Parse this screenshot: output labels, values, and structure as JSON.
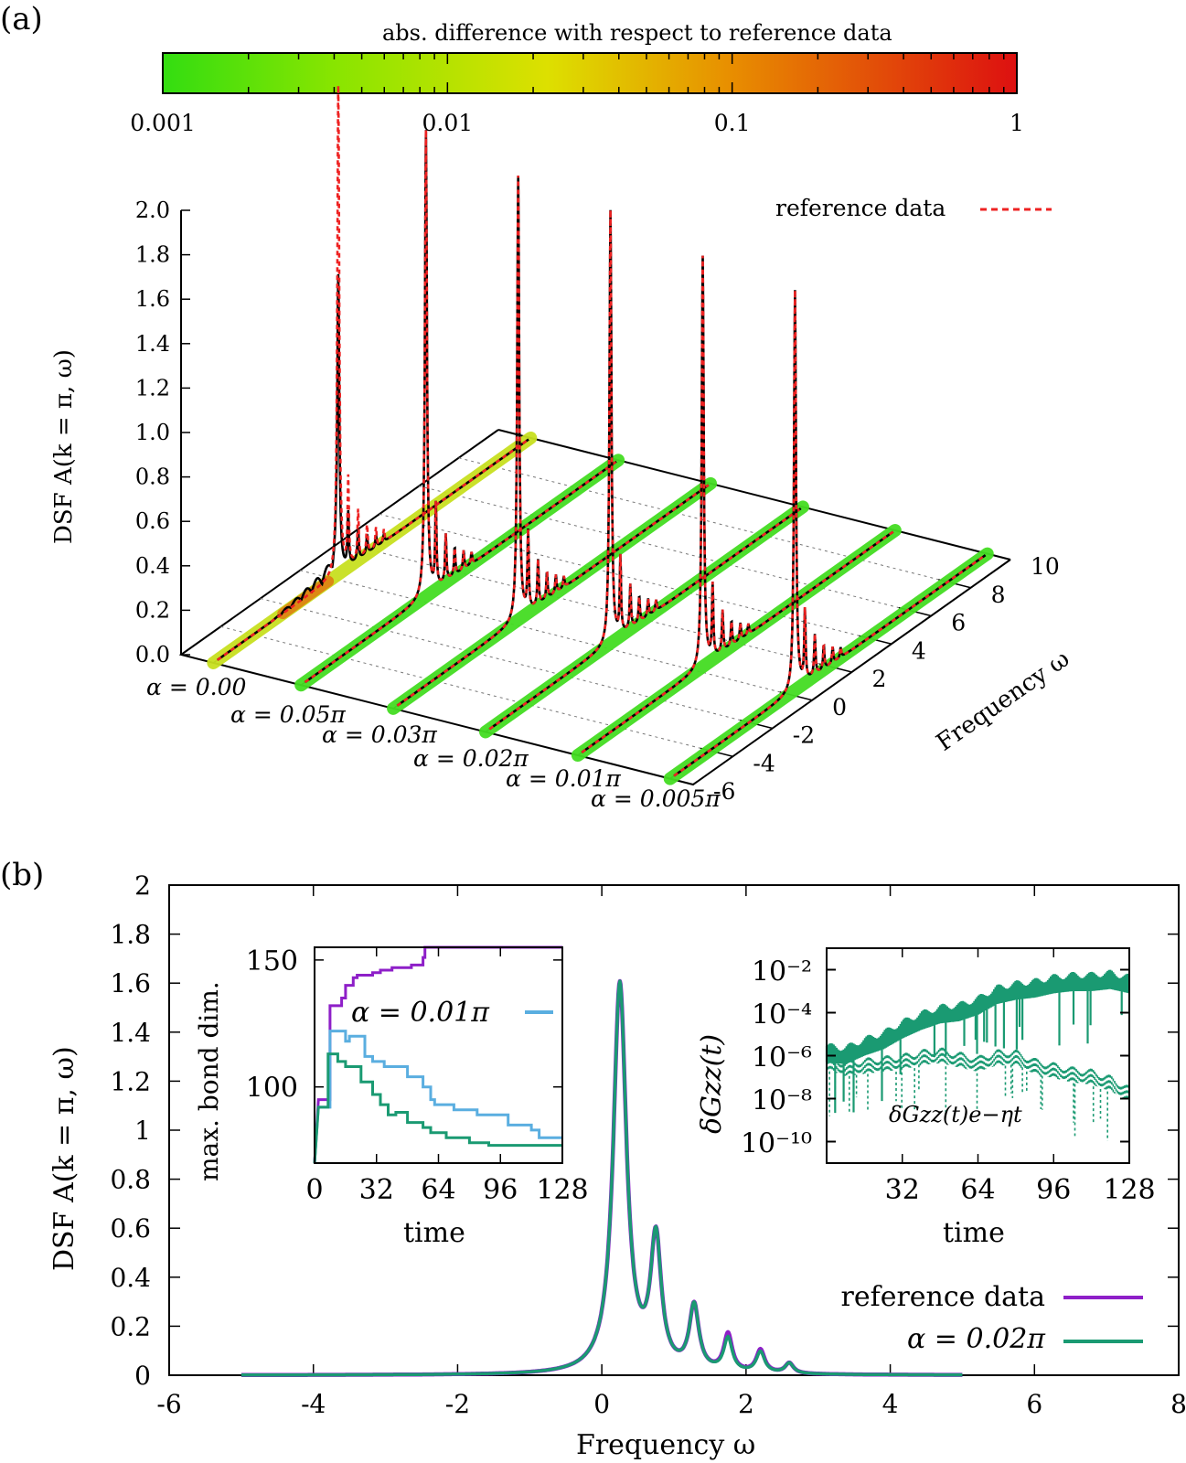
{
  "chart_data": [
    {
      "panel": "(a)",
      "type": "line",
      "title": "",
      "colorbar": {
        "label": "abs. difference with respect to reference data",
        "scale": "log",
        "range": [
          0.001,
          1
        ],
        "tick_labels": [
          "0.001",
          "0.01",
          "0.1",
          "1"
        ],
        "tick_values": [
          0.001,
          0.01,
          0.1,
          1
        ],
        "colors": [
          "#33dd11",
          "#dddd00",
          "#e88800",
          "#dd1111"
        ]
      },
      "zlabel": "DSF A(k = π, ω)",
      "zlim": [
        0,
        2.0
      ],
      "z_tick_labels": [
        "0.0",
        "0.2",
        "0.4",
        "0.6",
        "0.8",
        "1.0",
        "1.2",
        "1.4",
        "1.6",
        "1.8",
        "2.0"
      ],
      "ylabel": "Frequency ω",
      "ylim": [
        -6,
        10
      ],
      "y_tick_labels": [
        "-6",
        "-4",
        "-2",
        "0",
        "2",
        "4",
        "6",
        "8",
        "10"
      ],
      "x_category_labels": [
        "α = 0.00",
        "α = 0.05π",
        "α = 0.03π",
        "α = 0.02π",
        "α = 0.01π",
        "α = 0.005π"
      ],
      "legend": {
        "label": "reference data",
        "style": "dashed",
        "color": "#ee2222",
        "position": "top-right"
      },
      "series": [
        {
          "name": "α = 0.00",
          "peak_omega": 0.3,
          "peak_height": 1.35,
          "reference_peak_height": 2.2,
          "error_level": "high"
        },
        {
          "name": "α = 0.05π",
          "peak_omega": 0.3,
          "peak_height": 2.1,
          "reference_peak_height": 2.1,
          "error_level": "low"
        },
        {
          "name": "α = 0.03π",
          "peak_omega": 0.3,
          "peak_height": 2.0,
          "reference_peak_height": 2.0,
          "error_level": "low"
        },
        {
          "name": "α = 0.02π",
          "peak_omega": 0.3,
          "peak_height": 1.95,
          "reference_peak_height": 1.95,
          "error_level": "low"
        },
        {
          "name": "α = 0.01π",
          "peak_omega": 0.3,
          "peak_height": 1.85,
          "reference_peak_height": 1.85,
          "error_level": "low"
        },
        {
          "name": "α = 0.005π",
          "peak_omega": 0.3,
          "peak_height": 1.8,
          "reference_peak_height": 1.8,
          "error_level": "low"
        }
      ]
    },
    {
      "panel": "(b)",
      "type": "line",
      "xlabel": "Frequency ω",
      "ylabel": "DSF A(k = π, ω)",
      "xlim": [
        -6,
        8
      ],
      "ylim": [
        0,
        2
      ],
      "x_tick_labels": [
        "-6",
        "-4",
        "-2",
        "0",
        "2",
        "4",
        "6",
        "8"
      ],
      "y_tick_labels": [
        "0",
        "0.2",
        "0.4",
        "0.6",
        "0.8",
        "1",
        "1.2",
        "1.4",
        "1.6",
        "1.8",
        "2"
      ],
      "legend": {
        "position": "bottom-right",
        "entries": [
          {
            "label": "reference data",
            "color": "#8e1fc8"
          },
          {
            "label": "α = 0.02π",
            "color": "#1a9a72"
          }
        ]
      },
      "peaks": [
        {
          "omega": 0.25,
          "value": 1.87
        },
        {
          "omega": 0.75,
          "value": 0.62
        },
        {
          "omega": 1.28,
          "value": 0.31
        },
        {
          "omega": 1.75,
          "value": 0.16,
          "reference_value": 0.18
        },
        {
          "omega": 2.2,
          "value": 0.1,
          "reference_value": 0.11
        },
        {
          "omega": 2.6,
          "value": 0.05
        }
      ],
      "series": [
        {
          "name": "reference data",
          "color": "#8e1fc8",
          "x": [
            -5,
            -4,
            -3,
            -2,
            -1,
            -0.5,
            -0.2,
            0,
            0.1,
            0.2,
            0.25,
            0.3,
            0.4,
            0.55,
            0.7,
            0.75,
            0.8,
            1.0,
            1.2,
            1.28,
            1.35,
            1.55,
            1.75,
            1.9,
            2.05,
            2.2,
            2.35,
            2.5,
            2.6,
            2.75,
            3.0,
            3.5,
            4,
            5
          ],
          "y": [
            0.0,
            0.005,
            0.01,
            0.02,
            0.05,
            0.11,
            0.28,
            0.7,
            1.2,
            1.75,
            1.87,
            1.7,
            0.9,
            0.27,
            0.5,
            0.62,
            0.52,
            0.18,
            0.26,
            0.31,
            0.26,
            0.08,
            0.18,
            0.06,
            0.05,
            0.11,
            0.04,
            0.03,
            0.05,
            0.02,
            0.01,
            0.003,
            0.0,
            0.0
          ]
        },
        {
          "name": "α = 0.02π",
          "color": "#1a9a72",
          "x": [
            -5,
            -4,
            -3,
            -2,
            -1,
            -0.5,
            -0.2,
            0,
            0.1,
            0.2,
            0.25,
            0.3,
            0.4,
            0.55,
            0.7,
            0.75,
            0.8,
            1.0,
            1.2,
            1.28,
            1.35,
            1.55,
            1.75,
            1.9,
            2.05,
            2.2,
            2.35,
            2.5,
            2.6,
            2.75,
            3.0,
            3.5,
            4,
            5
          ],
          "y": [
            0.0,
            0.005,
            0.01,
            0.02,
            0.05,
            0.11,
            0.28,
            0.7,
            1.2,
            1.75,
            1.87,
            1.7,
            0.9,
            0.27,
            0.5,
            0.62,
            0.52,
            0.18,
            0.26,
            0.31,
            0.26,
            0.08,
            0.16,
            0.07,
            0.06,
            0.1,
            0.045,
            0.03,
            0.05,
            0.02,
            0.01,
            0.003,
            0.0,
            0.0
          ]
        }
      ]
    },
    {
      "panel": "(b) inset left",
      "type": "line",
      "xlabel": "time",
      "ylabel": "max. bond dim.",
      "xlim": [
        0,
        128
      ],
      "ylim": [
        70,
        155
      ],
      "x_tick_labels": [
        "0",
        "32",
        "64",
        "96",
        "128"
      ],
      "y_tick_labels": [
        "100",
        "150"
      ],
      "legend": {
        "position": "top-right",
        "entries": [
          {
            "label": "α = 0.01π",
            "color": "#5aaee0"
          }
        ]
      },
      "series": [
        {
          "name": "purple",
          "color": "#8e1fc8",
          "x": [
            0,
            2,
            8,
            10,
            14,
            16,
            20,
            22,
            30,
            34,
            40,
            44,
            50,
            54,
            56,
            57,
            128
          ],
          "y": [
            70,
            95,
            132,
            132,
            135,
            140,
            143,
            144,
            145,
            146,
            147,
            147,
            148,
            148,
            151,
            155,
            155
          ]
        },
        {
          "name": "α = 0.01π",
          "color": "#5aaee0",
          "x": [
            0,
            2,
            8,
            12,
            16,
            18,
            22,
            26,
            30,
            36,
            48,
            56,
            60,
            62,
            72,
            84,
            100,
            112,
            116,
            128
          ],
          "y": [
            70,
            92,
            122,
            122,
            118,
            120,
            120,
            112,
            110,
            108,
            104,
            100,
            95,
            93,
            91,
            89,
            85,
            83,
            80,
            80
          ]
        },
        {
          "name": "α = 0.02π",
          "color": "#1a9a72",
          "x": [
            0,
            2,
            7,
            10,
            12,
            16,
            22,
            24,
            30,
            34,
            38,
            42,
            48,
            56,
            60,
            68,
            72,
            80,
            90,
            100,
            110,
            128
          ],
          "y": [
            70,
            92,
            113,
            113,
            110,
            108,
            108,
            102,
            97,
            93,
            89,
            90,
            86,
            84,
            82,
            80,
            80,
            78,
            77,
            77,
            77,
            77
          ]
        }
      ]
    },
    {
      "panel": "(b) inset right",
      "type": "line",
      "xlabel": "time",
      "ylabel": "δG_zz(t)",
      "yscale": "log",
      "xlim": [
        0,
        128
      ],
      "ylim": [
        1e-11,
        0.1
      ],
      "x_tick_labels": [
        "32",
        "64",
        "96",
        "128"
      ],
      "y_tick_labels": [
        "10⁻²",
        "10⁻⁴",
        "10⁻⁶",
        "10⁻⁸",
        "10⁻¹⁰"
      ],
      "annotation": "δG_zz(t)e^(−ηt)",
      "series": [
        {
          "name": "δG_zz(t)",
          "style": "solid",
          "color": "#1a9a72",
          "x": [
            0,
            8,
            16,
            24,
            32,
            40,
            48,
            56,
            64,
            72,
            80,
            88,
            96,
            104,
            112,
            120,
            128
          ],
          "log10_y": [
            -5.8,
            -5.9,
            -5.5,
            -5.2,
            -4.7,
            -4.3,
            -4.0,
            -3.9,
            -3.6,
            -3.1,
            -2.9,
            -2.8,
            -2.6,
            -2.5,
            -2.5,
            -2.4,
            -2.6
          ]
        },
        {
          "name": "δG_zz(t)e^(−ηt)",
          "style": "dashed",
          "color": "#1a9a72",
          "x": [
            0,
            8,
            16,
            24,
            32,
            40,
            48,
            56,
            64,
            72,
            80,
            88,
            96,
            104,
            112,
            120,
            128
          ],
          "log10_y": [
            -6.3,
            -6.6,
            -6.5,
            -6.4,
            -6.3,
            -6.1,
            -6.0,
            -6.2,
            -6.4,
            -6.1,
            -6.1,
            -6.5,
            -6.7,
            -6.9,
            -7.0,
            -7.3,
            -7.8
          ]
        }
      ]
    }
  ],
  "labels": {
    "panel_a": "(a)",
    "panel_b": "(b)",
    "colorbar_title": "abs. difference with respect to reference data",
    "a_zlabel": "DSF A(k = π, ω)",
    "a_ylabel": "Frequency ω",
    "a_legend": "reference data",
    "b_xlabel": "Frequency ω",
    "b_ylabel": "DSF A(k = π, ω)",
    "b_legend_ref": "reference data",
    "b_legend_alpha": "α = 0.02π",
    "inset1_ylabel": "max. bond dim.",
    "inset1_xlabel": "time",
    "inset1_legend": "α = 0.01π",
    "inset2_ylabel": "δGzz(t)",
    "inset2_xlabel": "time",
    "inset2_annotation": "δGzz(t)e−ηt"
  }
}
